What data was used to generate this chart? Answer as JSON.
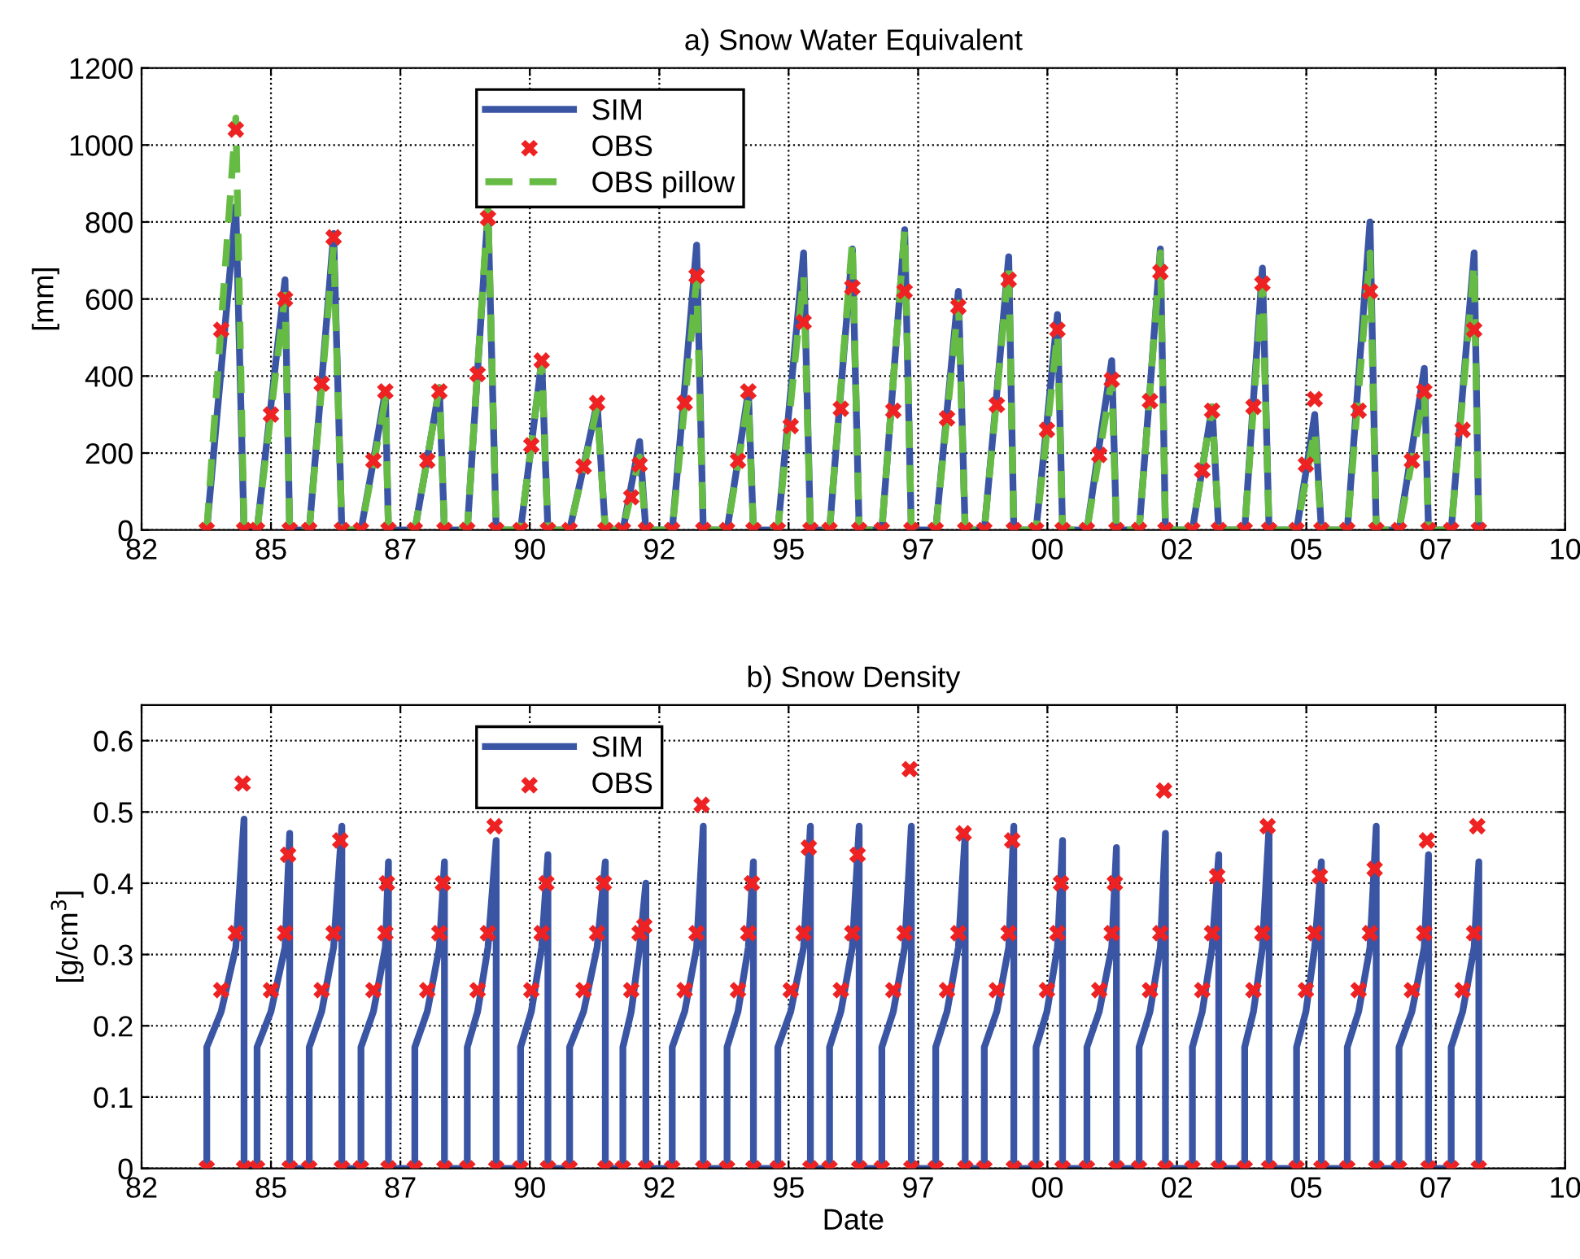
{
  "chart_data": [
    {
      "type": "line",
      "title": "a) Snow Water Equivalent",
      "ylabel": "[mm]",
      "grid": true,
      "legend": "top",
      "line_style": "solid",
      "x": [
        "1983-10-24",
        "1984-02-03",
        "1984-05-16",
        "1984-07-13",
        "1984-10-13",
        "1985-01-19",
        "1985-04-28",
        "1985-05-31",
        "1985-10-16",
        "1986-01-12",
        "1986-04-06",
        "1986-06-03",
        "1986-10-16",
        "1987-01-12",
        "1987-04-06",
        "1987-04-28",
        "1987-10-31",
        "1988-01-27",
        "1988-04-21",
        "1988-05-27",
        "1988-11-04",
        "1989-01-16",
        "1989-03-30",
        "1989-05-27",
        "1989-11-15",
        "1990-01-30",
        "1990-04-13",
        "1990-05-27",
        "1990-10-27",
        "1991-02-03",
        "1991-05-09",
        "1991-07-06",
        "1991-11-07",
        "1992-01-05",
        "1992-03-04",
        "1992-04-17",
        "1992-10-20",
        "1993-01-16",
        "1993-04-10",
        "1993-05-27",
        "1993-11-11",
        "1994-01-27",
        "1994-04-10",
        "1994-05-16",
        "1994-11-04",
        "1995-02-03",
        "1995-05-05",
        "1995-06-22",
        "1995-11-04",
        "1996-01-23",
        "1996-04-13",
        "1996-05-31",
        "1996-11-07",
        "1997-01-27",
        "1997-04-17",
        "1997-06-03",
        "1997-11-22",
        "1998-02-10",
        "1998-05-01",
        "1998-06-18",
        "1998-10-31",
        "1999-01-27",
        "1999-04-21",
        "1999-05-27",
        "1999-10-31",
        "2000-01-16",
        "2000-03-30",
        "2000-05-05",
        "2000-10-24",
        "2001-01-19",
        "2001-04-17",
        "2001-05-20",
        "2001-10-27",
        "2002-01-12",
        "2002-03-26",
        "2002-05-01",
        "2002-11-07",
        "2003-01-16",
        "2003-03-26",
        "2003-05-12",
        "2003-11-11",
        "2004-01-12",
        "2004-03-15",
        "2004-05-01",
        "2004-11-11",
        "2005-01-16",
        "2005-03-19",
        "2005-05-05",
        "2005-11-04",
        "2006-01-23",
        "2006-04-13",
        "2006-05-27",
        "2006-11-04",
        "2007-02-03",
        "2007-05-01",
        "2007-05-31",
        "2007-11-07",
        "2008-01-27",
        "2008-04-17",
        "2008-05-20"
      ],
      "xlim": [
        "1982-07-21",
        "2010-01-19"
      ],
      "xticks": [
        {
          "value": "1982-07-21",
          "label": "82"
        },
        {
          "value": "1985-01-19",
          "label": "85"
        },
        {
          "value": "1987-07-21",
          "label": "87"
        },
        {
          "value": "1990-01-19",
          "label": "90"
        },
        {
          "value": "1992-07-21",
          "label": "92"
        },
        {
          "value": "1995-01-19",
          "label": "95"
        },
        {
          "value": "1997-07-21",
          "label": "97"
        },
        {
          "value": "2000-01-19",
          "label": "00"
        },
        {
          "value": "2002-07-21",
          "label": "02"
        },
        {
          "value": "2005-01-19",
          "label": "05"
        },
        {
          "value": "2007-07-21",
          "label": "07"
        },
        {
          "value": "2010-01-19",
          "label": "10"
        }
      ],
      "ylim": [
        0,
        1200
      ],
      "yticks": [
        0,
        200,
        400,
        600,
        800,
        1000,
        1200
      ],
      "series": [
        {
          "name": "SIM",
          "color": "#3a55a4",
          "values": [
            0,
            420,
            840,
            0,
            0,
            325,
            650,
            0,
            0,
            385,
            770,
            0,
            0,
            180,
            360,
            0,
            0,
            185,
            370,
            0,
            0,
            415,
            830,
            0,
            0,
            220,
            440,
            0,
            0,
            165,
            330,
            0,
            0,
            115,
            230,
            0,
            0,
            370,
            740,
            0,
            0,
            180,
            360,
            0,
            0,
            360,
            720,
            0,
            0,
            365,
            730,
            0,
            0,
            390,
            780,
            0,
            0,
            310,
            620,
            0,
            0,
            355,
            710,
            0,
            0,
            280,
            560,
            0,
            0,
            220,
            440,
            0,
            0,
            365,
            730,
            0,
            0,
            160,
            320,
            0,
            0,
            340,
            680,
            0,
            0,
            150,
            300,
            0,
            0,
            400,
            800,
            0,
            0,
            210,
            420,
            0,
            0,
            360,
            720,
            0
          ]
        },
        {
          "name": "OBS",
          "type": "scatter",
          "color": "#ee2222",
          "marker": "cross",
          "values": [
            0,
            520,
            1040,
            0,
            0,
            300,
            600,
            0,
            0,
            380,
            760,
            0,
            0,
            180,
            360,
            0,
            0,
            180,
            360,
            0,
            0,
            405,
            810,
            0,
            0,
            220,
            440,
            0,
            0,
            165,
            330,
            0,
            0,
            85,
            170,
            0,
            0,
            330,
            660,
            0,
            0,
            180,
            360,
            0,
            0,
            270,
            540,
            0,
            0,
            315,
            630,
            0,
            0,
            310,
            620,
            0,
            0,
            290,
            580,
            0,
            0,
            325,
            650,
            0,
            0,
            260,
            520,
            0,
            0,
            195,
            390,
            0,
            0,
            335,
            670,
            0,
            0,
            155,
            310,
            0,
            0,
            320,
            640,
            0,
            0,
            170,
            340,
            0,
            0,
            310,
            620,
            0,
            0,
            180,
            360,
            0,
            0,
            260,
            520,
            0
          ]
        },
        {
          "name": "OBS pillow",
          "color": "#66bb44",
          "line_style": "dashed",
          "values": [
            0,
            535,
            1070,
            0,
            0,
            305,
            610,
            0,
            0,
            370,
            740,
            0,
            0,
            170,
            340,
            0,
            0,
            185,
            370,
            0,
            0,
            420,
            840,
            0,
            0,
            220,
            440,
            0,
            0,
            160,
            320,
            0,
            0,
            95,
            190,
            0,
            0,
            325,
            650,
            0,
            0,
            170,
            340,
            0,
            0,
            330,
            660,
            0,
            0,
            375,
            750,
            0,
            0,
            390,
            780,
            0,
            0,
            295,
            590,
            0,
            0,
            345,
            690,
            0,
            0,
            255,
            510,
            0,
            0,
            195,
            390,
            0,
            0,
            360,
            720,
            0,
            0,
            160,
            320,
            0,
            0,
            320,
            640,
            0,
            0,
            130,
            260,
            0,
            0,
            360,
            720,
            0,
            0,
            180,
            360,
            0,
            0,
            345,
            690,
            0
          ]
        }
      ]
    },
    {
      "type": "line",
      "title": "b) Snow Density",
      "ylabel": "[g/cm$^{3}$]",
      "xlabel": "Date",
      "grid": true,
      "legend": "top",
      "line_style": "solid",
      "xlim": [
        "1982-07-21",
        "2010-01-19"
      ],
      "xticks": [
        {
          "value": "1982-07-21",
          "label": "82"
        },
        {
          "value": "1985-01-19",
          "label": "85"
        },
        {
          "value": "1987-07-21",
          "label": "87"
        },
        {
          "value": "1990-01-19",
          "label": "90"
        },
        {
          "value": "1992-07-21",
          "label": "92"
        },
        {
          "value": "1995-01-19",
          "label": "95"
        },
        {
          "value": "1997-07-21",
          "label": "97"
        },
        {
          "value": "2000-01-19",
          "label": "00"
        },
        {
          "value": "2002-07-21",
          "label": "02"
        },
        {
          "value": "2005-01-19",
          "label": "05"
        },
        {
          "value": "2007-07-21",
          "label": "07"
        },
        {
          "value": "2010-01-19",
          "label": "10"
        }
      ],
      "ylim": [
        0,
        0.65
      ],
      "yticks": [
        0,
        0.1,
        0.2,
        0.3,
        0.4,
        0.5,
        0.6
      ],
      "series": [
        {
          "name": "SIM",
          "color": "#3a55a4",
          "x": [
            "1983-10-24",
            "1983-10-24",
            "1984-02-03",
            "1984-05-16",
            "1984-07-13",
            "1984-07-13",
            "1984-10-13",
            "1984-10-13",
            "1985-01-19",
            "1985-04-28",
            "1985-05-31",
            "1985-05-31",
            "1985-10-16",
            "1985-10-16",
            "1986-01-12",
            "1986-04-06",
            "1986-06-03",
            "1986-06-03",
            "1986-10-16",
            "1986-10-16",
            "1987-01-12",
            "1987-04-06",
            "1987-04-28",
            "1987-04-28",
            "1987-10-31",
            "1987-10-31",
            "1988-01-27",
            "1988-04-21",
            "1988-05-27",
            "1988-05-27",
            "1988-11-04",
            "1988-11-04",
            "1989-01-16",
            "1989-03-30",
            "1989-05-27",
            "1989-05-27",
            "1989-11-15",
            "1989-11-15",
            "1990-01-30",
            "1990-04-13",
            "1990-05-27",
            "1990-05-27",
            "1990-10-27",
            "1990-10-27",
            "1991-02-03",
            "1991-05-09",
            "1991-07-06",
            "1991-07-06",
            "1991-11-07",
            "1991-11-07",
            "1992-01-05",
            "1992-03-04",
            "1992-04-17",
            "1992-04-17",
            "1992-10-20",
            "1992-10-20",
            "1993-01-16",
            "1993-04-10",
            "1993-05-27",
            "1993-05-27",
            "1993-11-11",
            "1993-11-11",
            "1994-01-27",
            "1994-04-10",
            "1994-05-16",
            "1994-05-16",
            "1994-11-04",
            "1994-11-04",
            "1995-02-03",
            "1995-05-05",
            "1995-06-22",
            "1995-06-22",
            "1995-11-04",
            "1995-11-04",
            "1996-01-23",
            "1996-04-13",
            "1996-05-31",
            "1996-05-31",
            "1996-11-07",
            "1996-11-07",
            "1997-01-27",
            "1997-04-17",
            "1997-06-03",
            "1997-06-03",
            "1997-11-22",
            "1997-11-22",
            "1998-02-10",
            "1998-05-01",
            "1998-06-18",
            "1998-06-18",
            "1998-10-31",
            "1998-10-31",
            "1999-01-27",
            "1999-04-21",
            "1999-05-27",
            "1999-05-27",
            "1999-10-31",
            "1999-10-31",
            "2000-01-16",
            "2000-03-30",
            "2000-05-05",
            "2000-05-05",
            "2000-10-24",
            "2000-10-24",
            "2001-01-19",
            "2001-04-17",
            "2001-05-20",
            "2001-05-20",
            "2001-10-27",
            "2001-10-27",
            "2002-01-12",
            "2002-03-26",
            "2002-05-01",
            "2002-05-01",
            "2002-11-07",
            "2002-11-07",
            "2003-01-16",
            "2003-03-26",
            "2003-05-12",
            "2003-05-12",
            "2003-11-11",
            "2003-11-11",
            "2004-01-12",
            "2004-03-15",
            "2004-05-01",
            "2004-05-01",
            "2004-11-11",
            "2004-11-11",
            "2005-01-16",
            "2005-03-19",
            "2005-05-05",
            "2005-05-05",
            "2005-11-04",
            "2005-11-04",
            "2006-01-23",
            "2006-04-13",
            "2006-05-27",
            "2006-05-27",
            "2006-11-04",
            "2006-11-04",
            "2007-02-03",
            "2007-05-01",
            "2007-05-31",
            "2007-05-31",
            "2007-11-07",
            "2007-11-07",
            "2008-01-27",
            "2008-04-17",
            "2008-05-20",
            "2008-05-20"
          ],
          "values": [
            0,
            0.17,
            0.22,
            0.31,
            0.49,
            0,
            0,
            0.17,
            0.22,
            0.31,
            0.47,
            0,
            0,
            0.17,
            0.22,
            0.31,
            0.48,
            0,
            0,
            0.17,
            0.22,
            0.31,
            0.43,
            0,
            0,
            0.17,
            0.22,
            0.31,
            0.43,
            0,
            0,
            0.17,
            0.22,
            0.31,
            0.46,
            0,
            0,
            0.17,
            0.22,
            0.31,
            0.44,
            0,
            0,
            0.17,
            0.22,
            0.31,
            0.43,
            0,
            0,
            0.17,
            0.22,
            0.31,
            0.4,
            0,
            0,
            0.17,
            0.22,
            0.31,
            0.48,
            0,
            0,
            0.17,
            0.22,
            0.31,
            0.43,
            0,
            0,
            0.17,
            0.22,
            0.31,
            0.48,
            0,
            0,
            0.17,
            0.22,
            0.31,
            0.48,
            0,
            0,
            0.17,
            0.22,
            0.31,
            0.48,
            0,
            0,
            0.17,
            0.22,
            0.31,
            0.47,
            0,
            0,
            0.17,
            0.22,
            0.31,
            0.48,
            0,
            0,
            0.17,
            0.22,
            0.31,
            0.46,
            0,
            0,
            0.17,
            0.22,
            0.31,
            0.45,
            0,
            0,
            0.17,
            0.22,
            0.31,
            0.47,
            0,
            0,
            0.17,
            0.22,
            0.31,
            0.44,
            0,
            0,
            0.17,
            0.22,
            0.31,
            0.48,
            0,
            0,
            0.17,
            0.22,
            0.31,
            0.43,
            0,
            0,
            0.17,
            0.22,
            0.31,
            0.48,
            0,
            0,
            0.17,
            0.22,
            0.31,
            0.44,
            0,
            0,
            0.17,
            0.22,
            0.31,
            0.43,
            0
          ]
        },
        {
          "name": "OBS",
          "type": "scatter",
          "color": "#ee2222",
          "marker": "cross",
          "x": [
            "1983-10-24",
            "1984-02-03",
            "1984-05-16",
            "1984-07-03",
            "1984-07-13",
            "1984-10-13",
            "1985-01-19",
            "1985-04-28",
            "1985-05-20",
            "1985-05-31",
            "1985-10-16",
            "1986-01-12",
            "1986-04-06",
            "1986-05-23",
            "1986-06-03",
            "1986-10-16",
            "1987-01-12",
            "1987-04-06",
            "1987-04-17",
            "1987-04-28",
            "1987-10-31",
            "1988-01-27",
            "1988-04-21",
            "1988-05-16",
            "1988-05-27",
            "1988-11-04",
            "1989-01-16",
            "1989-03-30",
            "1989-05-16",
            "1989-05-27",
            "1989-11-15",
            "1990-01-30",
            "1990-04-13",
            "1990-05-16",
            "1990-05-27",
            "1990-10-27",
            "1991-02-03",
            "1991-05-09",
            "1991-06-25",
            "1991-07-06",
            "1991-11-07",
            "1992-01-05",
            "1992-03-04",
            "1992-04-06",
            "1992-04-17",
            "1992-10-20",
            "1993-01-16",
            "1993-04-10",
            "1993-05-16",
            "1993-05-27",
            "1993-11-11",
            "1994-01-27",
            "1994-04-10",
            "1994-05-05",
            "1994-05-16",
            "1994-11-04",
            "1995-02-03",
            "1995-05-05",
            "1995-06-11",
            "1995-06-22",
            "1995-11-04",
            "1996-01-23",
            "1996-04-13",
            "1996-05-20",
            "1996-05-31",
            "1996-11-07",
            "1997-01-27",
            "1997-04-17",
            "1997-05-23",
            "1997-06-03",
            "1997-11-22",
            "1998-02-10",
            "1998-05-01",
            "1998-06-07",
            "1998-06-18",
            "1998-10-31",
            "1999-01-27",
            "1999-04-21",
            "1999-05-16",
            "1999-05-27",
            "1999-10-31",
            "2000-01-16",
            "2000-03-30",
            "2000-04-24",
            "2000-05-05",
            "2000-10-24",
            "2001-01-19",
            "2001-04-17",
            "2001-05-09",
            "2001-05-20",
            "2001-10-27",
            "2002-01-12",
            "2002-03-26",
            "2002-04-21",
            "2002-05-01",
            "2002-11-07",
            "2003-01-16",
            "2003-03-26",
            "2003-05-01",
            "2003-05-12",
            "2003-11-11",
            "2004-01-12",
            "2004-03-15",
            "2004-04-21",
            "2004-05-01",
            "2004-11-11",
            "2005-01-16",
            "2005-03-19",
            "2005-04-24",
            "2005-05-05",
            "2005-11-04",
            "2006-01-23",
            "2006-04-13",
            "2006-05-16",
            "2006-05-27",
            "2006-11-04",
            "2007-02-03",
            "2007-05-01",
            "2007-05-20",
            "2007-05-31",
            "2007-11-07",
            "2008-01-27",
            "2008-04-17",
            "2008-05-09",
            "2008-05-20"
          ],
          "values": [
            0,
            0.25,
            0.33,
            0.54,
            0,
            0,
            0.25,
            0.33,
            0.44,
            0,
            0,
            0.25,
            0.33,
            0.46,
            0,
            0,
            0.25,
            0.33,
            0.4,
            0,
            0,
            0.25,
            0.33,
            0.4,
            0,
            0,
            0.25,
            0.33,
            0.48,
            0,
            0,
            0.25,
            0.33,
            0.4,
            0,
            0,
            0.25,
            0.33,
            0.4,
            0,
            0,
            0.25,
            0.33,
            0.34,
            0,
            0,
            0.25,
            0.33,
            0.51,
            0,
            0,
            0.25,
            0.33,
            0.4,
            0,
            0,
            0.25,
            0.33,
            0.45,
            0,
            0,
            0.25,
            0.33,
            0.44,
            0,
            0,
            0.25,
            0.33,
            0.56,
            0,
            0,
            0.25,
            0.33,
            0.47,
            0,
            0,
            0.25,
            0.33,
            0.46,
            0,
            0,
            0.25,
            0.33,
            0.4,
            0,
            0,
            0.25,
            0.33,
            0.4,
            0,
            0,
            0.25,
            0.33,
            0.53,
            0,
            0,
            0.25,
            0.33,
            0.41,
            0,
            0,
            0.25,
            0.33,
            0.48,
            0,
            0,
            0.25,
            0.33,
            0.41,
            0,
            0,
            0.25,
            0.33,
            0.42,
            0,
            0,
            0.25,
            0.33,
            0.46,
            0,
            0,
            0.25,
            0.33,
            0.48,
            0
          ]
        }
      ]
    }
  ]
}
